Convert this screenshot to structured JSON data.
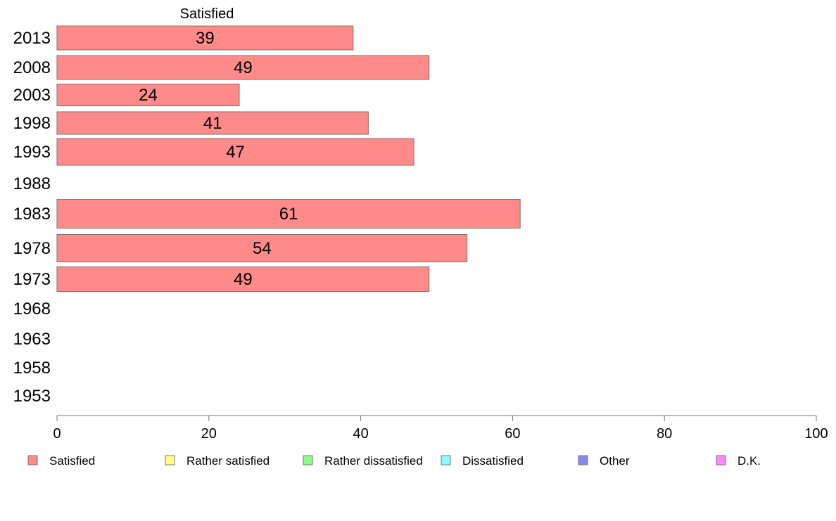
{
  "chart_data": {
    "type": "bar",
    "orientation": "horizontal",
    "title": "Satisfied",
    "categories": [
      "2013",
      "2008",
      "2003",
      "1998",
      "1993",
      "1988",
      "1983",
      "1978",
      "1973",
      "1968",
      "1963",
      "1958",
      "1953"
    ],
    "series": [
      {
        "name": "Satisfied",
        "color": "#ff8a8a",
        "values": [
          39,
          49,
          24,
          41,
          47,
          null,
          61,
          54,
          49,
          null,
          null,
          null,
          null
        ]
      }
    ],
    "data_labels": [
      "39",
      "49",
      "24",
      "41",
      "47",
      "",
      "61",
      "54",
      "49",
      "",
      "",
      "",
      ""
    ],
    "xlim": [
      0,
      100
    ],
    "x_ticks": [
      0,
      20,
      40,
      60,
      80,
      100
    ],
    "xlabel": "",
    "ylabel": "",
    "grid": false,
    "legend_position": "bottom",
    "legend": [
      {
        "label": "Satisfied",
        "color": "#ff8a8a"
      },
      {
        "label": "Rather satisfied",
        "color": "#ffff88"
      },
      {
        "label": "Rather dissatisfied",
        "color": "#88ff88"
      },
      {
        "label": "Dissatisfied",
        "color": "#88ffff"
      },
      {
        "label": "Other",
        "color": "#8888ee"
      },
      {
        "label": "D.K.",
        "color": "#ff88ff"
      }
    ]
  }
}
